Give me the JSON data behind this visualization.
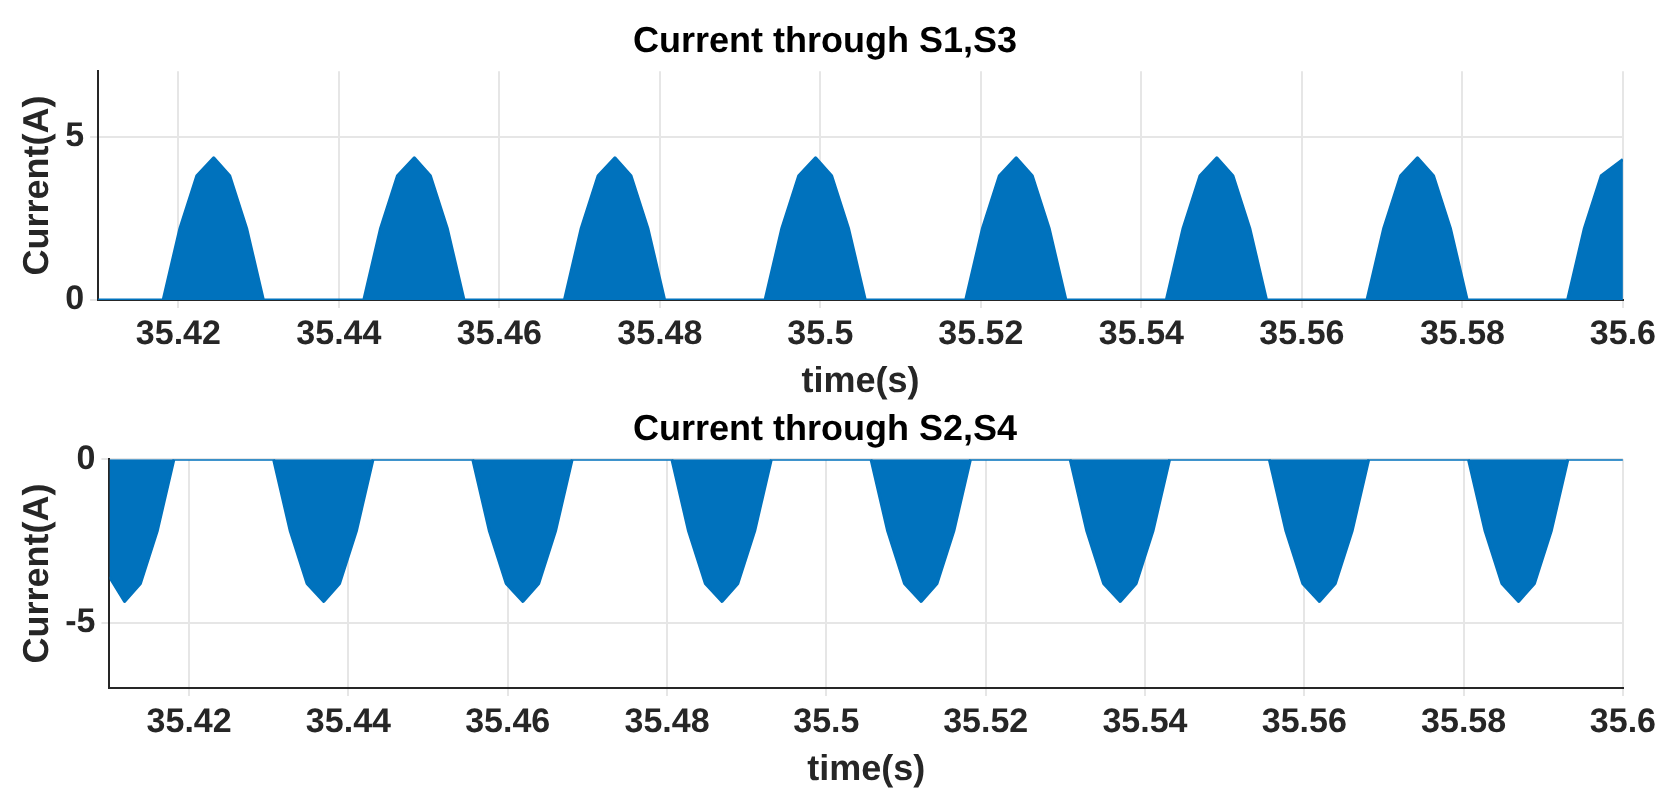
{
  "chart_data": [
    {
      "type": "area",
      "title": "Current through S1,S3",
      "xlabel": "time(s)",
      "ylabel": "Current(A)",
      "xlim": [
        35.41,
        35.6
      ],
      "xticks": [
        35.42,
        35.44,
        35.46,
        35.48,
        35.5,
        35.52,
        35.54,
        35.56,
        35.58,
        35.6
      ],
      "ylim": [
        0,
        7
      ],
      "yticks": [
        0,
        5
      ],
      "grid": true,
      "series": [
        {
          "color": "#0072bd",
          "x": [
            35.41,
            35.4181,
            35.4202,
            35.4223,
            35.4244,
            35.4264,
            35.4285,
            35.4306,
            35.4431,
            35.4452,
            35.4473,
            35.4494,
            35.4514,
            35.4535,
            35.4556,
            35.4681,
            35.4702,
            35.4723,
            35.4744,
            35.4764,
            35.4785,
            35.4806,
            35.4931,
            35.4952,
            35.4973,
            35.4994,
            35.5014,
            35.5035,
            35.5056,
            35.5181,
            35.5202,
            35.5223,
            35.5244,
            35.5264,
            35.5285,
            35.5306,
            35.5431,
            35.5452,
            35.5473,
            35.5494,
            35.5514,
            35.5535,
            35.5556,
            35.5681,
            35.5702,
            35.5723,
            35.5744,
            35.5764,
            35.5785,
            35.5806,
            35.5931,
            35.5952,
            35.5973,
            35.6
          ],
          "values": [
            0,
            0,
            2.2,
            3.8,
            4.35,
            3.8,
            2.2,
            0,
            0,
            2.2,
            3.8,
            4.35,
            3.8,
            2.2,
            0,
            0,
            2.2,
            3.8,
            4.35,
            3.8,
            2.2,
            0,
            0,
            2.2,
            3.8,
            4.35,
            3.8,
            2.2,
            0,
            0,
            2.2,
            3.8,
            4.35,
            3.8,
            2.2,
            0,
            0,
            2.2,
            3.8,
            4.35,
            3.8,
            2.2,
            0,
            0,
            2.2,
            3.8,
            4.35,
            3.8,
            2.2,
            0,
            0,
            2.2,
            3.8,
            4.3
          ]
        }
      ]
    },
    {
      "type": "area",
      "title": "Current through S2,S4",
      "xlabel": "time(s)",
      "ylabel": "Current(A)",
      "xlim": [
        35.41,
        35.6
      ],
      "xticks": [
        35.42,
        35.44,
        35.46,
        35.48,
        35.5,
        35.52,
        35.54,
        35.56,
        35.58,
        35.6
      ],
      "ylim": [
        -7,
        0
      ],
      "yticks": [
        -5,
        0
      ],
      "grid": true,
      "series": [
        {
          "color": "#0072bd",
          "x": [
            35.41,
            35.4119,
            35.4139,
            35.416,
            35.4181,
            35.4306,
            35.4327,
            35.4348,
            35.4369,
            35.4389,
            35.441,
            35.4431,
            35.4556,
            35.4577,
            35.4598,
            35.4619,
            35.4639,
            35.466,
            35.4681,
            35.4806,
            35.4827,
            35.4848,
            35.4869,
            35.4889,
            35.491,
            35.4931,
            35.5056,
            35.5077,
            35.5098,
            35.5119,
            35.5139,
            35.516,
            35.5181,
            35.5306,
            35.5327,
            35.5348,
            35.5369,
            35.5389,
            35.541,
            35.5431,
            35.5556,
            35.5577,
            35.5598,
            35.5619,
            35.5639,
            35.566,
            35.5681,
            35.5806,
            35.5827,
            35.5848,
            35.5869,
            35.5889,
            35.591,
            35.5931,
            35.6
          ],
          "values": [
            -3.6,
            -4.35,
            -3.8,
            -2.2,
            0,
            0,
            -2.2,
            -3.8,
            -4.35,
            -3.8,
            -2.2,
            0,
            0,
            -2.2,
            -3.8,
            -4.35,
            -3.8,
            -2.2,
            0,
            0,
            -2.2,
            -3.8,
            -4.35,
            -3.8,
            -2.2,
            0,
            0,
            -2.2,
            -3.8,
            -4.35,
            -3.8,
            -2.2,
            0,
            0,
            -2.2,
            -3.8,
            -4.35,
            -3.8,
            -2.2,
            0,
            0,
            -2.2,
            -3.8,
            -4.35,
            -3.8,
            -2.2,
            0,
            0,
            -2.2,
            -3.8,
            -4.35,
            -3.8,
            -2.2,
            0,
            0
          ]
        }
      ]
    }
  ]
}
